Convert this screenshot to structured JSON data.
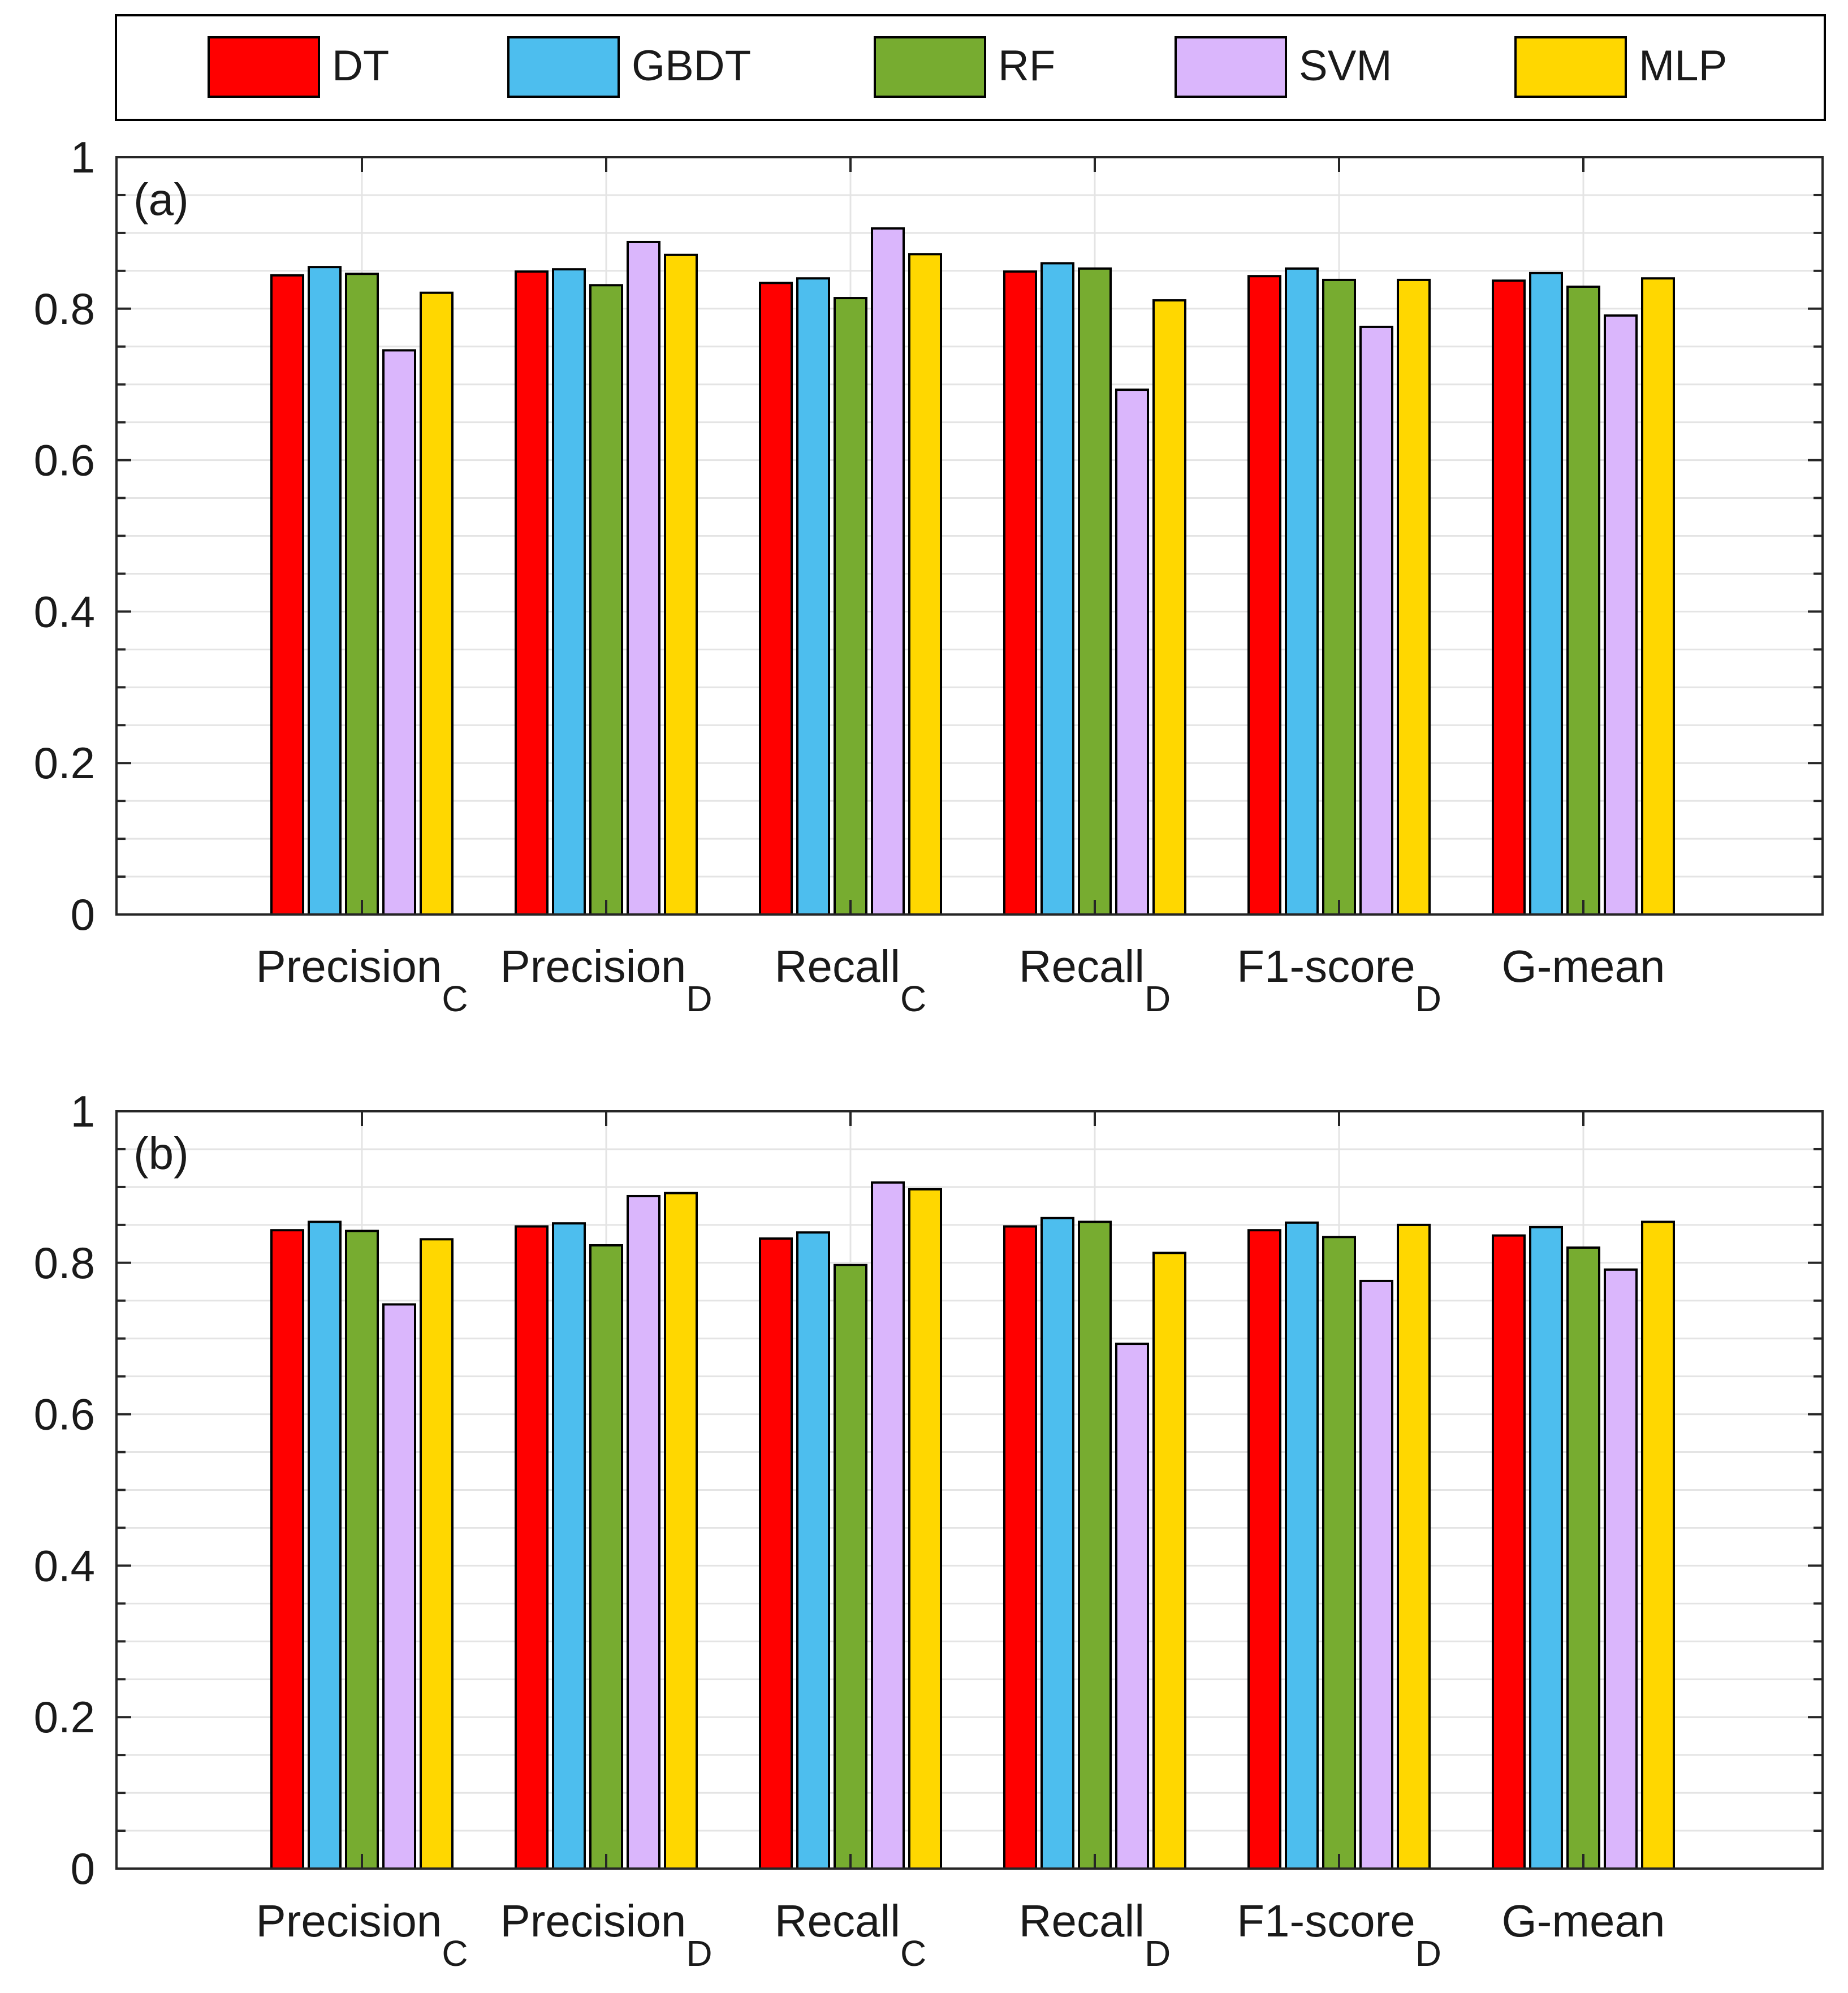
{
  "legend": {
    "items": [
      {
        "label": "DT",
        "color": "#FF0000"
      },
      {
        "label": "GBDT",
        "color": "#4DBEEE"
      },
      {
        "label": "RF",
        "color": "#77AC30"
      },
      {
        "label": "SVM",
        "color": "#DAB6FC"
      },
      {
        "label": "MLP",
        "color": "#FFD700"
      }
    ]
  },
  "chart_data": [
    {
      "type": "bar",
      "panel_label": "(a)",
      "categories": [
        {
          "base": "Precision",
          "sub": "C"
        },
        {
          "base": "Precision",
          "sub": "D"
        },
        {
          "base": "Recall",
          "sub": "C"
        },
        {
          "base": "Recall",
          "sub": "D"
        },
        {
          "base": "F1-score",
          "sub": "D"
        },
        {
          "base": "G-mean",
          "sub": ""
        }
      ],
      "series": [
        {
          "name": "DT",
          "values": [
            0.844,
            0.849,
            0.834,
            0.849,
            0.843,
            0.837
          ]
        },
        {
          "name": "GBDT",
          "values": [
            0.855,
            0.852,
            0.84,
            0.86,
            0.853,
            0.847
          ]
        },
        {
          "name": "RF",
          "values": [
            0.846,
            0.831,
            0.814,
            0.853,
            0.838,
            0.829
          ]
        },
        {
          "name": "SVM",
          "values": [
            0.745,
            0.888,
            0.906,
            0.693,
            0.776,
            0.791
          ]
        },
        {
          "name": "MLP",
          "values": [
            0.821,
            0.871,
            0.872,
            0.811,
            0.838,
            0.84
          ]
        }
      ],
      "yticks": [
        "0",
        "0.2",
        "0.4",
        "0.6",
        "0.8",
        "1"
      ],
      "ylim": [
        0,
        1
      ]
    },
    {
      "type": "bar",
      "panel_label": "(b)",
      "categories": [
        {
          "base": "Precision",
          "sub": "C"
        },
        {
          "base": "Precision",
          "sub": "D"
        },
        {
          "base": "Recall",
          "sub": "C"
        },
        {
          "base": "Recall",
          "sub": "D"
        },
        {
          "base": "F1-score",
          "sub": "D"
        },
        {
          "base": "G-mean",
          "sub": ""
        }
      ],
      "series": [
        {
          "name": "DT",
          "values": [
            0.843,
            0.848,
            0.832,
            0.848,
            0.843,
            0.836
          ]
        },
        {
          "name": "GBDT",
          "values": [
            0.854,
            0.852,
            0.84,
            0.859,
            0.853,
            0.847
          ]
        },
        {
          "name": "RF",
          "values": [
            0.842,
            0.823,
            0.797,
            0.854,
            0.834,
            0.82
          ]
        },
        {
          "name": "SVM",
          "values": [
            0.745,
            0.888,
            0.906,
            0.693,
            0.776,
            0.791
          ]
        },
        {
          "name": "MLP",
          "values": [
            0.831,
            0.892,
            0.897,
            0.813,
            0.85,
            0.854
          ]
        }
      ],
      "yticks": [
        "0",
        "0.2",
        "0.4",
        "0.6",
        "0.8",
        "1"
      ],
      "ylim": [
        0,
        1
      ]
    }
  ]
}
